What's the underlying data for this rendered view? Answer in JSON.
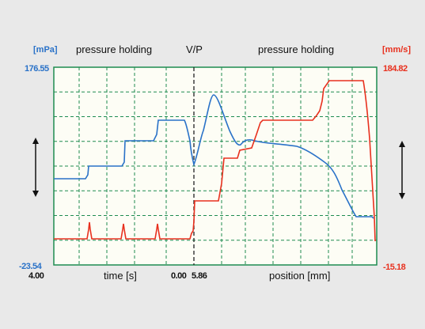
{
  "header": {
    "left_unit": "[mPa]",
    "left_section": "pressure holding",
    "switch_label": "V/P",
    "right_section": "pressure holding",
    "right_unit": "[mm/s]"
  },
  "axes": {
    "left_top": "176.55",
    "left_bottom": "-23.54",
    "right_top": "184.82",
    "right_bottom": "-15.18",
    "time_start": "4.00",
    "time_end": "0.00",
    "position_start": "5.86",
    "time_label": "time [s]",
    "position_label": "position [mm]"
  },
  "colors": {
    "pressure": "#2a72c8",
    "velocity": "#e8301e",
    "grid": "#1e8c50",
    "plot_bg": "#fdfdf5"
  },
  "icons": {
    "left_scale": "double-arrow-vertical-icon",
    "right_scale": "double-arrow-vertical-icon"
  }
}
